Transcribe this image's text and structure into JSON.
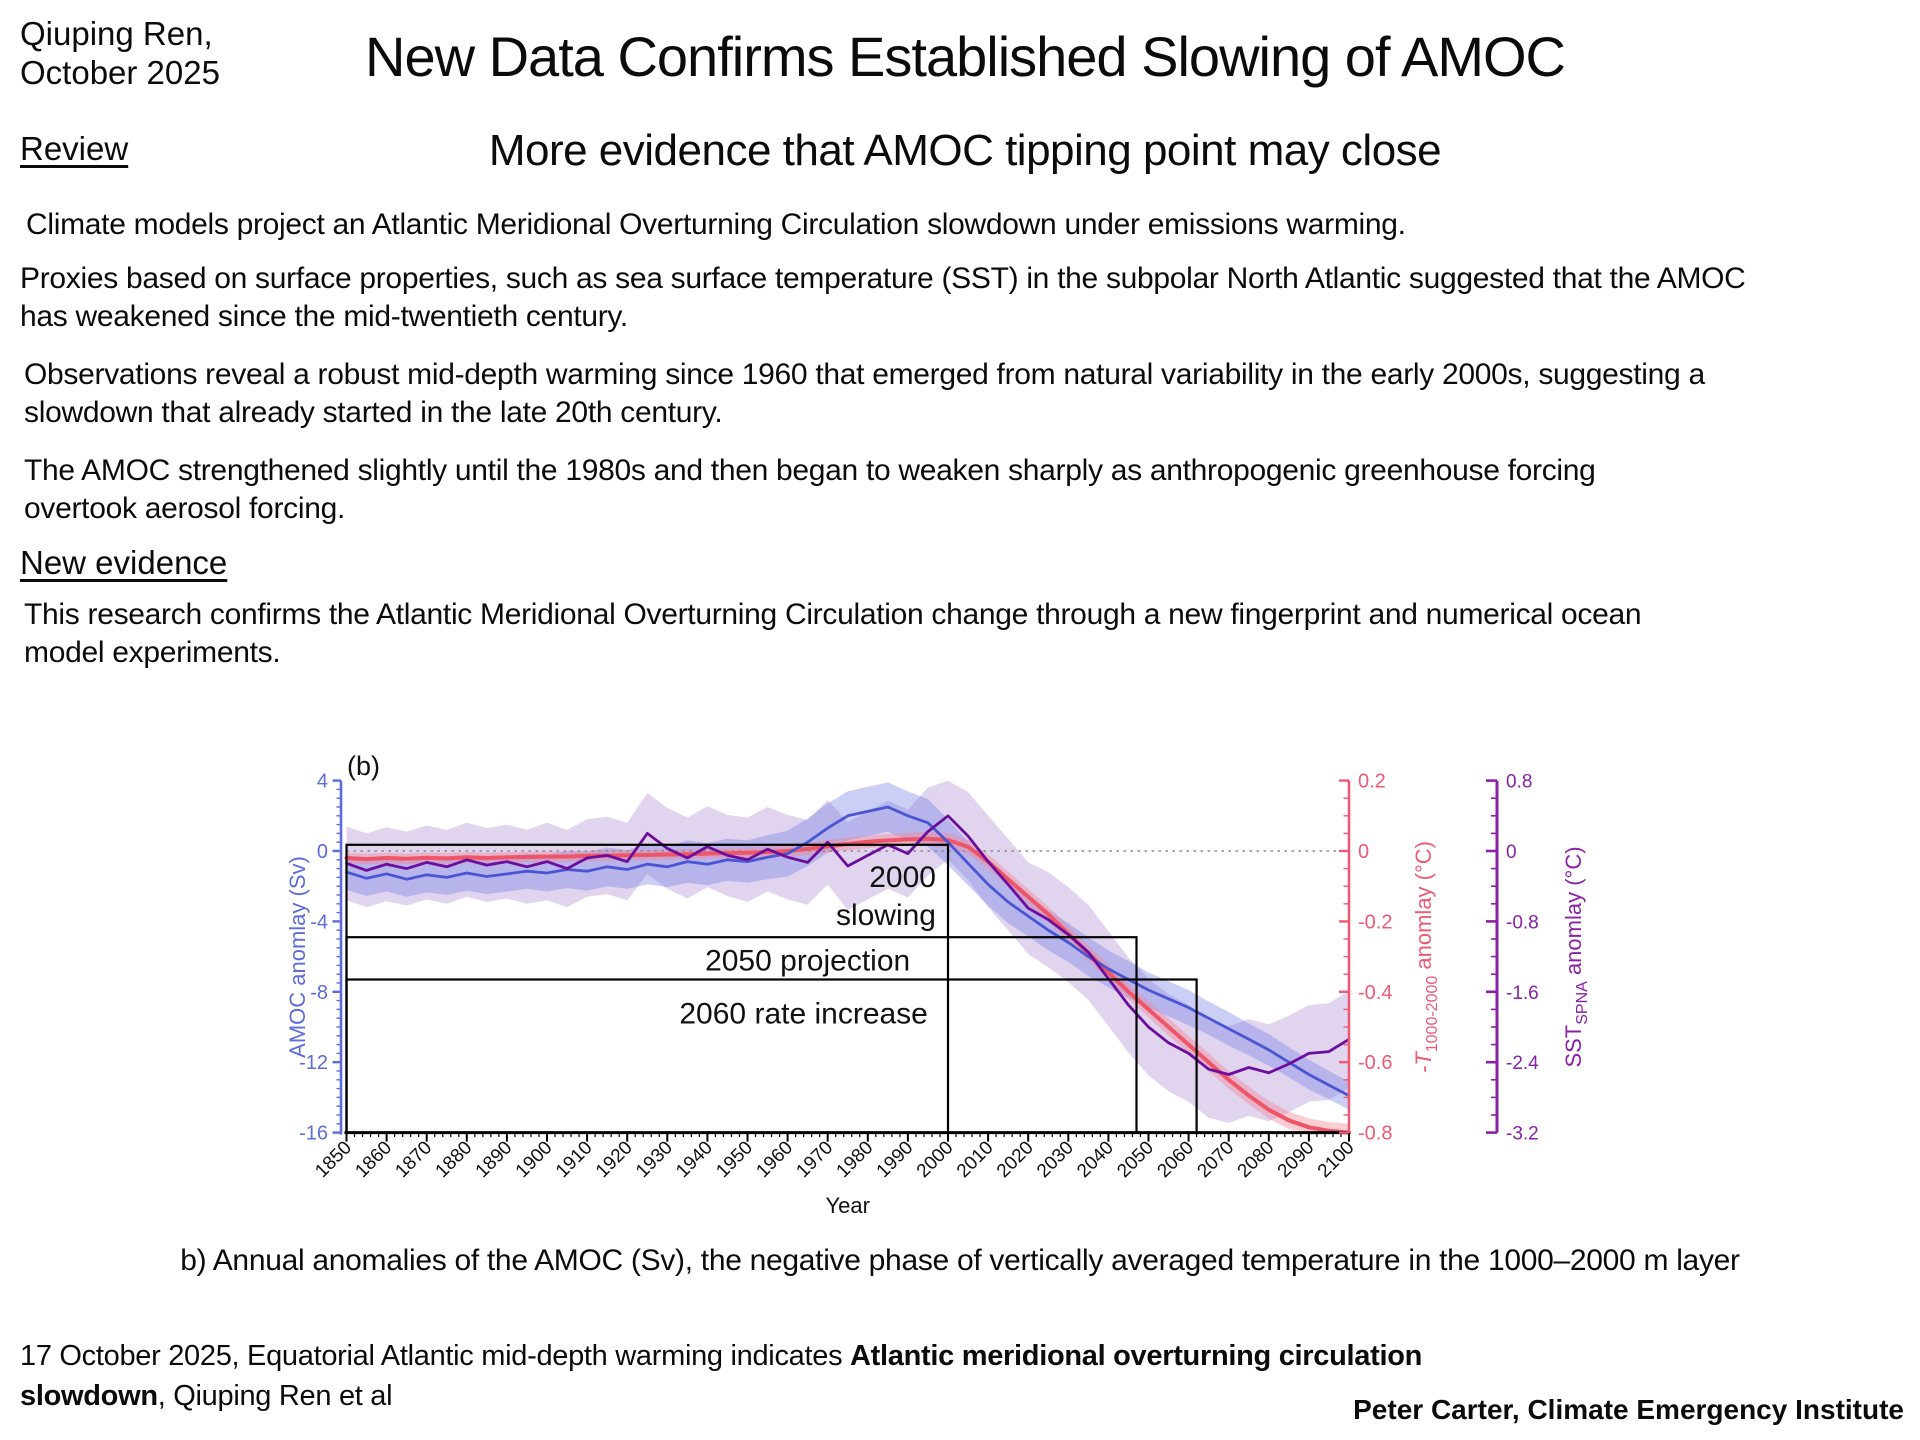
{
  "header": {
    "byline_line1": "Qiuping Ren,",
    "byline_line2": "October 2025",
    "review_label": "Review",
    "title": "New Data Confirms Established Slowing of AMOC",
    "subtitle": "More evidence that AMOC tipping point may close"
  },
  "paragraphs": {
    "p1": "Climate models project an Atlantic Meridional Overturning Circulation slowdown under emissions warming.",
    "p2": "Proxies based on surface properties, such as sea surface temperature (SST) in the subpolar North Atlantic suggested that the AMOC has weakened since the mid-twentieth century.",
    "p3": "Observations reveal a robust mid-depth warming since 1960 that emerged from natural variability in the early 2000s, suggesting a slowdown that already started in the late 20th century.",
    "p4": "The AMOC strengthened slightly until the 1980s and then began to weaken sharply as anthropogenic greenhouse forcing overtook aerosol forcing.",
    "new_evidence": "New evidence",
    "p5": "This research confirms the Atlantic Meridional Overturning Circulation change through a new fingerprint and numerical ocean model experiments."
  },
  "figure": {
    "caption": "b) Annual anomalies of the AMOC (Sv), the negative phase of vertically averaged temperature in the 1000–2000 m layer"
  },
  "footer": {
    "left_prefix": "17 October 2025, Equatorial Atlantic mid-depth warming indicates ",
    "left_bold": "Atlantic meridional overturning circulation slowdown",
    "left_suffix": ", Qiuping Ren et al",
    "credit": "Peter Carter, Climate Emergency Institute"
  },
  "chart_data": {
    "type": "line",
    "panel_label": "(b)",
    "xlabel": "Year",
    "xlim": [
      1850,
      2100
    ],
    "x_ticks": [
      1850,
      1860,
      1870,
      1880,
      1890,
      1900,
      1910,
      1920,
      1930,
      1940,
      1950,
      1960,
      1970,
      1980,
      1990,
      2000,
      2010,
      2020,
      2030,
      2040,
      2050,
      2060,
      2070,
      2080,
      2090,
      2100
    ],
    "grid": false,
    "zero_line_dotted": true,
    "axes": {
      "left": {
        "label": "AMOC anomlay (Sv)",
        "color": "#5d6cd9",
        "lim": [
          -16,
          4
        ],
        "ticks": [
          4,
          0,
          -4,
          -8,
          -12,
          -16
        ],
        "minor_step": 0.5
      },
      "right_pink": {
        "label_main": "-T",
        "label_sub": "1000-2000",
        "label_suffix": " anomlay (°C)",
        "color": "#ee5a74",
        "lim": [
          -0.8,
          0.2
        ],
        "ticks": [
          0.2,
          0,
          -0.2,
          -0.4,
          -0.6,
          -0.8
        ],
        "minor_step": 0.05
      },
      "right_purple": {
        "label_main": "SST",
        "label_sub": "SPNA",
        "label_suffix": " anomlay (°C)",
        "color": "#8a21a8",
        "lim": [
          -3.2,
          0.8
        ],
        "ticks": [
          0.8,
          0,
          -0.8,
          -1.6,
          -2.4,
          -3.2
        ],
        "minor_step": 0.2
      }
    },
    "series": {
      "years": [
        1850,
        1855,
        1860,
        1865,
        1870,
        1875,
        1880,
        1885,
        1890,
        1895,
        1900,
        1905,
        1910,
        1915,
        1920,
        1925,
        1930,
        1935,
        1940,
        1945,
        1950,
        1955,
        1960,
        1965,
        1970,
        1975,
        1980,
        1985,
        1990,
        1995,
        2000,
        2005,
        2010,
        2015,
        2020,
        2025,
        2030,
        2035,
        2040,
        2045,
        2050,
        2055,
        2060,
        2065,
        2070,
        2075,
        2080,
        2085,
        2090,
        2095,
        2100
      ],
      "amoc": {
        "name": "AMOC anomaly",
        "unit": "Sv",
        "color": "#4a55d4",
        "band_color": "rgba(105,118,228,0.35)",
        "values": [
          -1.2,
          -1.55,
          -1.3,
          -1.6,
          -1.35,
          -1.5,
          -1.25,
          -1.45,
          -1.3,
          -1.15,
          -1.25,
          -1.05,
          -1.15,
          -0.9,
          -1.05,
          -0.75,
          -0.9,
          -0.6,
          -0.75,
          -0.5,
          -0.6,
          -0.35,
          -0.15,
          0.5,
          1.3,
          2.0,
          2.25,
          2.5,
          2.0,
          1.6,
          0.5,
          -0.7,
          -1.9,
          -2.9,
          -3.7,
          -4.5,
          -5.2,
          -6.0,
          -6.7,
          -7.3,
          -7.9,
          -8.4,
          -8.9,
          -9.5,
          -10.1,
          -10.7,
          -11.3,
          -12.0,
          -12.7,
          -13.3,
          -13.9
        ],
        "band": [
          1.0,
          1.0,
          1.0,
          1.0,
          1.0,
          1.0,
          1.0,
          1.0,
          1.0,
          1.0,
          1.05,
          1.05,
          1.1,
          1.1,
          1.1,
          1.15,
          1.15,
          1.2,
          1.2,
          1.2,
          1.2,
          1.25,
          1.3,
          1.35,
          1.4,
          1.4,
          1.4,
          1.4,
          1.4,
          1.35,
          1.3,
          1.25,
          1.2,
          1.2,
          1.15,
          1.15,
          1.1,
          1.1,
          1.05,
          1.05,
          1.0,
          1.0,
          1.0,
          0.95,
          0.95,
          0.9,
          0.9,
          0.85,
          0.85,
          0.8,
          0.8
        ]
      },
      "t_mid": {
        "name": "-T 1000-2000 m anomaly (negative phase)",
        "unit": "°C",
        "color": "#ee5566",
        "band_color": "rgba(243,133,152,0.42)",
        "values": [
          -0.02,
          -0.023,
          -0.02,
          -0.022,
          -0.019,
          -0.021,
          -0.018,
          -0.02,
          -0.018,
          -0.017,
          -0.016,
          -0.016,
          -0.014,
          -0.013,
          -0.012,
          -0.011,
          -0.01,
          -0.009,
          -0.007,
          -0.006,
          -0.005,
          -0.003,
          0.0,
          0.006,
          0.013,
          0.02,
          0.026,
          0.03,
          0.033,
          0.035,
          0.031,
          0.012,
          -0.03,
          -0.08,
          -0.13,
          -0.18,
          -0.235,
          -0.29,
          -0.345,
          -0.4,
          -0.45,
          -0.5,
          -0.55,
          -0.6,
          -0.65,
          -0.695,
          -0.735,
          -0.765,
          -0.785,
          -0.795,
          -0.8
        ],
        "band": [
          0.015,
          0.015,
          0.015,
          0.015,
          0.015,
          0.015,
          0.015,
          0.015,
          0.015,
          0.015,
          0.015,
          0.015,
          0.015,
          0.015,
          0.015,
          0.015,
          0.015,
          0.015,
          0.015,
          0.015,
          0.015,
          0.015,
          0.018,
          0.018,
          0.018,
          0.018,
          0.018,
          0.018,
          0.018,
          0.02,
          0.02,
          0.02,
          0.02,
          0.022,
          0.022,
          0.022,
          0.022,
          0.022,
          0.022,
          0.022,
          0.022,
          0.025,
          0.025,
          0.025,
          0.025,
          0.025,
          0.025,
          0.025,
          0.025,
          0.025,
          0.025
        ]
      },
      "sst_spna": {
        "name": "SST SPNA anomaly",
        "unit": "°C",
        "color": "#6c0e9d",
        "band_color": "rgba(166,131,206,0.35)",
        "values": [
          -0.14,
          -0.22,
          -0.15,
          -0.2,
          -0.13,
          -0.18,
          -0.1,
          -0.16,
          -0.12,
          -0.18,
          -0.12,
          -0.2,
          -0.08,
          -0.05,
          -0.12,
          0.2,
          0.03,
          -0.08,
          0.05,
          -0.05,
          -0.1,
          0.02,
          -0.07,
          -0.13,
          0.1,
          -0.17,
          -0.05,
          0.07,
          -0.03,
          0.22,
          0.4,
          0.17,
          -0.12,
          -0.38,
          -0.65,
          -0.78,
          -0.95,
          -1.15,
          -1.45,
          -1.75,
          -2.0,
          -2.18,
          -2.3,
          -2.48,
          -2.54,
          -2.46,
          -2.52,
          -2.42,
          -2.3,
          -2.28,
          -2.14
        ],
        "band": [
          0.42,
          0.42,
          0.42,
          0.42,
          0.42,
          0.42,
          0.42,
          0.42,
          0.42,
          0.42,
          0.44,
          0.44,
          0.44,
          0.44,
          0.44,
          0.46,
          0.46,
          0.46,
          0.46,
          0.46,
          0.48,
          0.48,
          0.48,
          0.48,
          0.48,
          0.5,
          0.5,
          0.5,
          0.5,
          0.5,
          0.5,
          0.5,
          0.52,
          0.52,
          0.52,
          0.54,
          0.54,
          0.54,
          0.54,
          0.54,
          0.55,
          0.55,
          0.55,
          0.55,
          0.55,
          0.55,
          0.55,
          0.55,
          0.55,
          0.55,
          0.55
        ]
      }
    },
    "annotations": [
      {
        "end_year": 2000,
        "top_sv": 0.35,
        "line1": "2000",
        "line2": "slowing"
      },
      {
        "end_year": 2047,
        "top_sv": -4.9,
        "label": "2050 projection"
      },
      {
        "end_year": 2062,
        "top_sv": -7.3,
        "label": "2060 rate increase"
      }
    ]
  }
}
